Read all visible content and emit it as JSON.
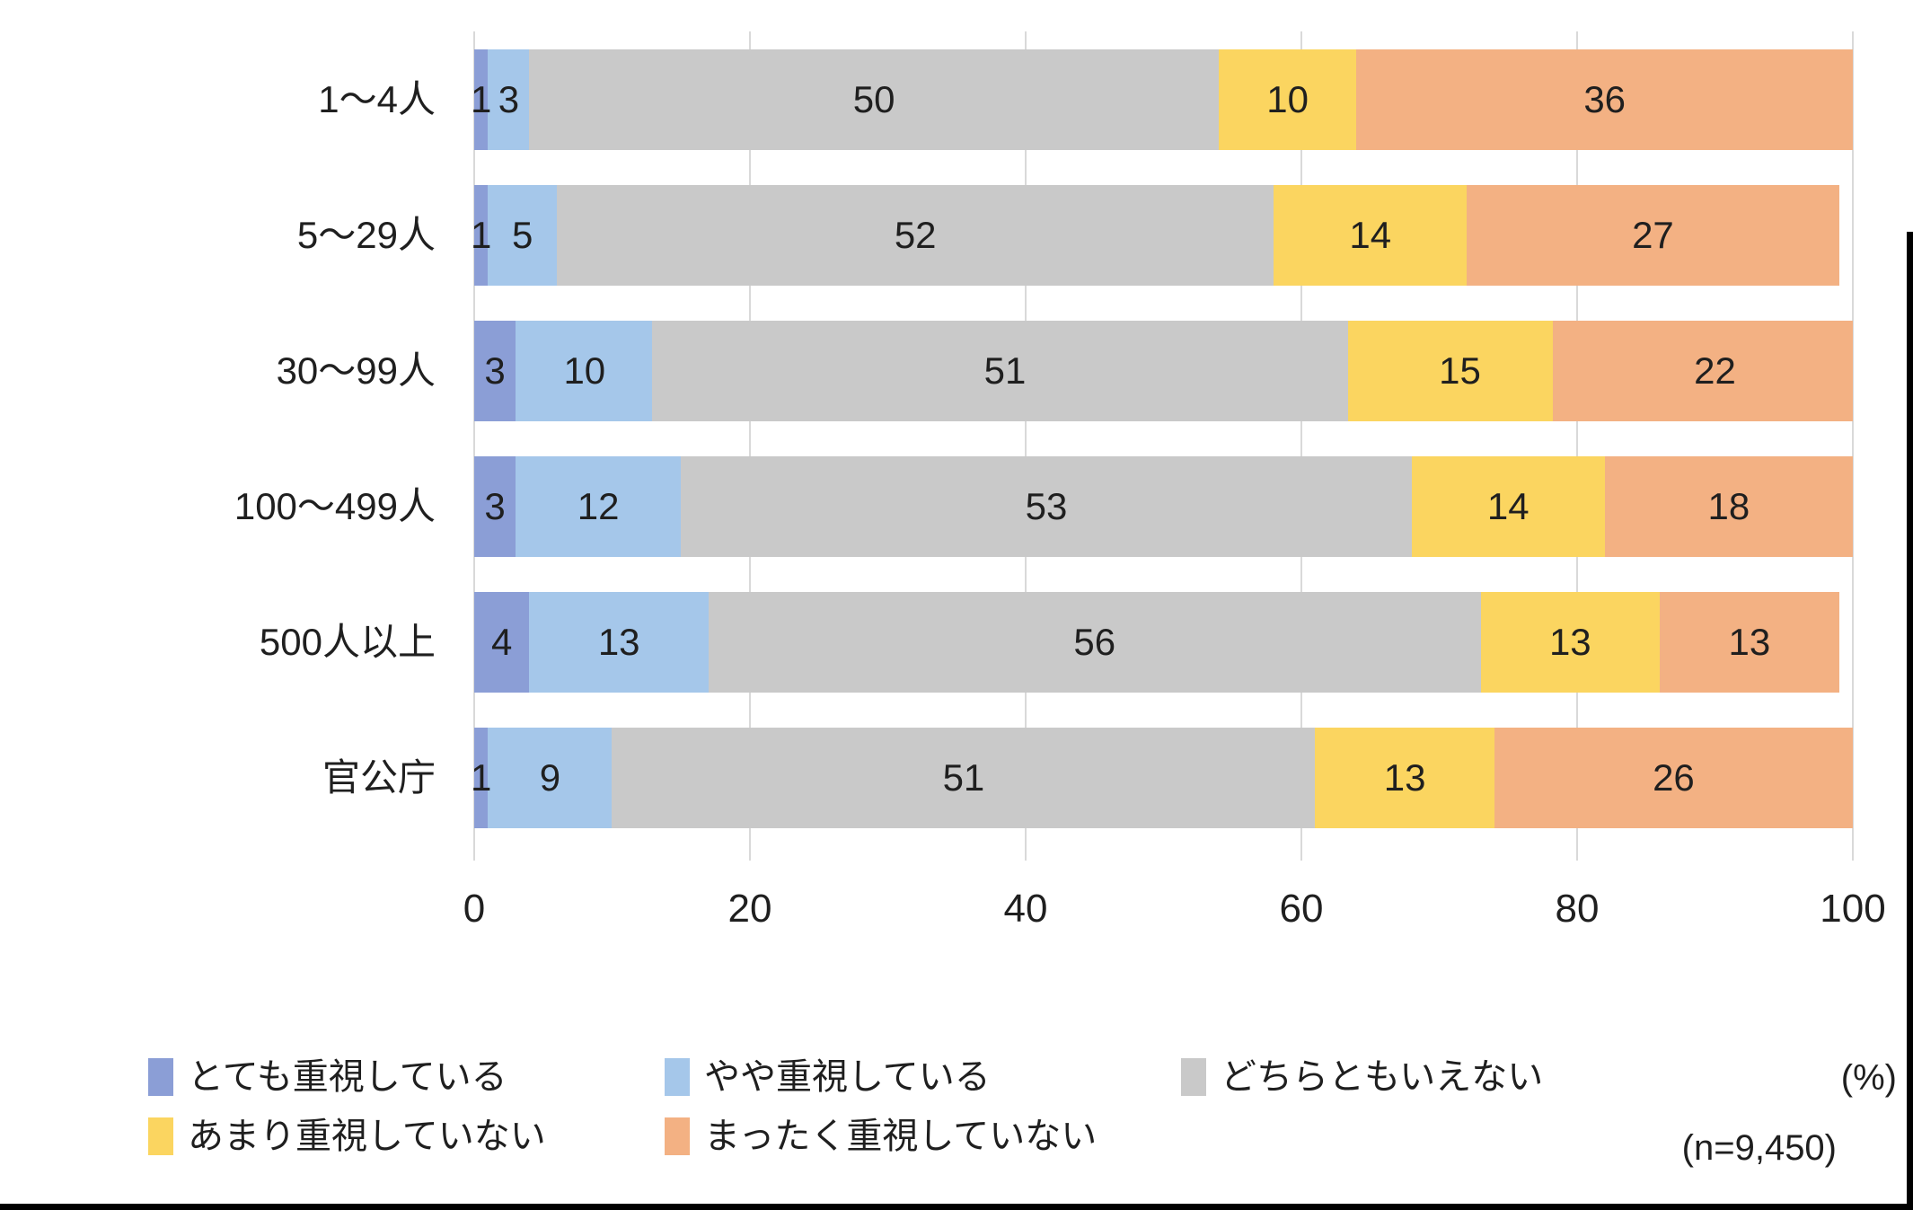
{
  "chart_data": {
    "type": "bar",
    "stacked": true,
    "orientation": "horizontal",
    "title": "",
    "categories": [
      "1〜4人",
      "5〜29人",
      "30〜99人",
      "100〜499人",
      "500人以上",
      "官公庁"
    ],
    "series": [
      {
        "name": "とても重視している",
        "color": "#8B9ED6",
        "values": [
          1,
          1,
          3,
          3,
          4,
          1
        ]
      },
      {
        "name": "やや重視している",
        "color": "#A5C7EA",
        "values": [
          3,
          5,
          10,
          12,
          13,
          9
        ]
      },
      {
        "name": "どちらともいえない",
        "color": "#C9C9C9",
        "values": [
          50,
          52,
          51,
          53,
          56,
          51
        ]
      },
      {
        "name": "あまり重視していない",
        "color": "#FBD560",
        "values": [
          10,
          14,
          15,
          14,
          13,
          13
        ]
      },
      {
        "name": "まったく重視していない",
        "color": "#F3B183",
        "values": [
          36,
          27,
          22,
          18,
          13,
          26
        ]
      }
    ],
    "x_axis": {
      "min": 0,
      "max": 100,
      "ticks": [
        0,
        20,
        40,
        60,
        80,
        100
      ]
    },
    "grid": true,
    "legend_position": "bottom",
    "unit_label": "(%)",
    "sample_label": "(n=9,450)",
    "colors": {
      "gridline": "#d9d9d9",
      "text": "#1f1f1f",
      "frame": "#000000"
    }
  }
}
